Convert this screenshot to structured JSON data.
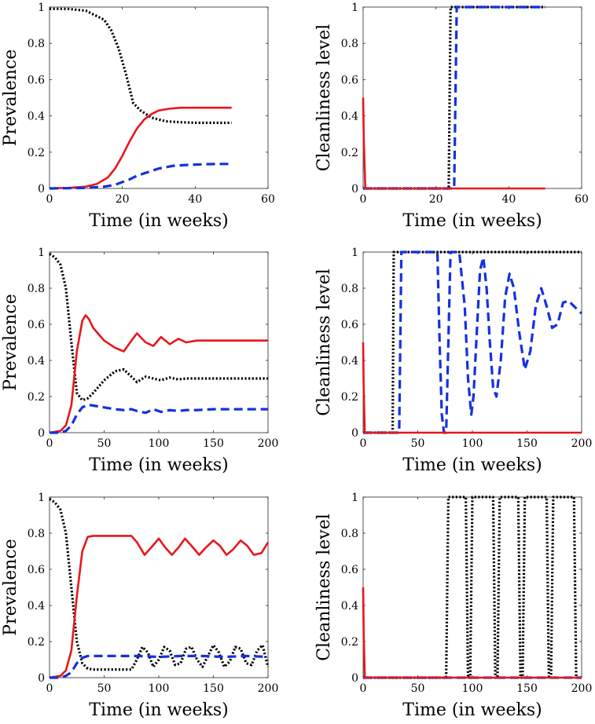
{
  "chart_data": [
    {
      "type": "line",
      "xlabel": "Time (in weeks)",
      "ylabel": "Prevalence",
      "xlim": [
        0,
        60
      ],
      "ylim": [
        0,
        1
      ],
      "xticks": [
        "0",
        "20",
        "40",
        "60"
      ],
      "yticks": [
        "0",
        "0.2",
        "0.4",
        "0.6",
        "0.8",
        "1"
      ],
      "series": [
        {
          "name": "black-dotted",
          "color": "#000000",
          "style": "dotted",
          "x": [
            0,
            5,
            10,
            15,
            17,
            19,
            21,
            23,
            25,
            28,
            32,
            36,
            40,
            45,
            50
          ],
          "y": [
            0.99,
            0.99,
            0.98,
            0.93,
            0.87,
            0.77,
            0.63,
            0.47,
            0.43,
            0.39,
            0.37,
            0.365,
            0.362,
            0.362,
            0.362
          ]
        },
        {
          "name": "red-solid",
          "color": "#e8161b",
          "style": "solid",
          "x": [
            0,
            5,
            10,
            13,
            16,
            18,
            20,
            22,
            24,
            26,
            28,
            30,
            33,
            36,
            40,
            45,
            50
          ],
          "y": [
            0.001,
            0.003,
            0.01,
            0.025,
            0.06,
            0.11,
            0.18,
            0.26,
            0.33,
            0.38,
            0.41,
            0.43,
            0.44,
            0.445,
            0.445,
            0.445,
            0.445
          ]
        },
        {
          "name": "blue-dashed",
          "color": "#1530e0",
          "style": "dashed",
          "x": [
            0,
            10,
            15,
            18,
            20,
            22,
            24,
            27,
            30,
            34,
            38,
            42,
            46,
            50
          ],
          "y": [
            0.0,
            0.003,
            0.01,
            0.02,
            0.035,
            0.05,
            0.07,
            0.09,
            0.11,
            0.125,
            0.13,
            0.133,
            0.135,
            0.135
          ]
        }
      ]
    },
    {
      "type": "line",
      "xlabel": "Time (in weeks)",
      "ylabel": "Cleanliness level",
      "xlim": [
        0,
        60
      ],
      "ylim": [
        0,
        1
      ],
      "xticks": [
        "0",
        "20",
        "40",
        "60"
      ],
      "yticks": [
        "0",
        "0.2",
        "0.4",
        "0.6",
        "0.8",
        "1"
      ],
      "series": [
        {
          "name": "black-dotted",
          "color": "#000000",
          "style": "dotted",
          "x": [
            0,
            23.5,
            24,
            50
          ],
          "y": [
            0,
            0,
            1,
            1
          ]
        },
        {
          "name": "blue-dashed",
          "color": "#1530e0",
          "style": "dashed",
          "x": [
            0,
            25,
            25.7,
            50
          ],
          "y": [
            0,
            0,
            1,
            1
          ]
        },
        {
          "name": "red-solid",
          "color": "#e8161b",
          "style": "solid",
          "x": [
            0,
            0.2,
            0.6,
            50
          ],
          "y": [
            0.5,
            0.25,
            0,
            0
          ]
        }
      ]
    },
    {
      "type": "line",
      "xlabel": "Time (in weeks)",
      "ylabel": "Prevalence",
      "xlim": [
        0,
        200
      ],
      "ylim": [
        0,
        1
      ],
      "xticks": [
        "0",
        "50",
        "100",
        "150",
        "200"
      ],
      "yticks": [
        "0",
        "0.2",
        "0.4",
        "0.6",
        "0.8",
        "1"
      ],
      "series": [
        {
          "name": "black-dotted",
          "color": "#000000",
          "style": "dotted",
          "x": [
            0,
            5,
            10,
            15,
            20,
            25,
            30,
            35,
            40,
            50,
            60,
            68,
            75,
            80,
            88,
            95,
            102,
            110,
            118,
            125,
            135,
            150,
            165,
            180,
            200
          ],
          "y": [
            0.99,
            0.97,
            0.93,
            0.8,
            0.5,
            0.22,
            0.18,
            0.19,
            0.22,
            0.29,
            0.34,
            0.35,
            0.31,
            0.28,
            0.31,
            0.3,
            0.29,
            0.305,
            0.295,
            0.3,
            0.3,
            0.3,
            0.3,
            0.3,
            0.3
          ]
        },
        {
          "name": "red-solid",
          "color": "#e8161b",
          "style": "solid",
          "x": [
            0,
            10,
            15,
            20,
            25,
            30,
            33,
            36,
            40,
            50,
            60,
            68,
            75,
            80,
            88,
            95,
            102,
            110,
            118,
            125,
            135,
            150,
            165,
            180,
            200
          ],
          "y": [
            0,
            0.01,
            0.04,
            0.15,
            0.45,
            0.62,
            0.65,
            0.63,
            0.58,
            0.51,
            0.47,
            0.45,
            0.51,
            0.55,
            0.5,
            0.48,
            0.53,
            0.49,
            0.52,
            0.5,
            0.51,
            0.51,
            0.51,
            0.51,
            0.51
          ]
        },
        {
          "name": "blue-dashed",
          "color": "#1530e0",
          "style": "dashed",
          "x": [
            0,
            10,
            15,
            20,
            25,
            30,
            35,
            40,
            50,
            60,
            68,
            75,
            80,
            88,
            95,
            102,
            110,
            118,
            125,
            135,
            150,
            165,
            180,
            200
          ],
          "y": [
            0,
            0.0,
            0.01,
            0.04,
            0.1,
            0.14,
            0.155,
            0.15,
            0.14,
            0.13,
            0.125,
            0.13,
            0.12,
            0.11,
            0.13,
            0.115,
            0.125,
            0.12,
            0.125,
            0.125,
            0.13,
            0.13,
            0.13,
            0.13
          ]
        }
      ]
    },
    {
      "type": "line",
      "xlabel": "Time (in weeks)",
      "ylabel": "Cleanliness level",
      "xlim": [
        0,
        200
      ],
      "ylim": [
        0,
        1
      ],
      "xticks": [
        "0",
        "50",
        "100",
        "150",
        "200"
      ],
      "yticks": [
        "0",
        "0.2",
        "0.4",
        "0.6",
        "0.8",
        "1"
      ],
      "series": [
        {
          "name": "black-dotted",
          "color": "#000000",
          "style": "dotted",
          "x": [
            0,
            27,
            28,
            200
          ],
          "y": [
            0,
            0,
            1,
            1
          ]
        },
        {
          "name": "blue-dashed",
          "color": "#1530e0",
          "style": "dashed",
          "x": [
            0,
            33,
            35,
            68,
            70,
            72,
            74,
            76,
            78,
            80,
            84,
            88,
            93,
            96,
            99,
            101,
            104,
            107,
            110,
            113,
            116,
            119,
            122,
            126,
            130,
            134,
            138,
            143,
            148,
            153,
            158,
            163,
            168,
            173,
            178,
            183,
            188,
            193,
            200
          ],
          "y": [
            0,
            0,
            1,
            1,
            0.5,
            0.1,
            0,
            0,
            0.5,
            1,
            1,
            1,
            0.7,
            0.3,
            0.1,
            0.2,
            0.55,
            0.9,
            0.97,
            0.8,
            0.5,
            0.25,
            0.2,
            0.4,
            0.75,
            0.88,
            0.8,
            0.55,
            0.35,
            0.45,
            0.7,
            0.8,
            0.7,
            0.58,
            0.6,
            0.72,
            0.73,
            0.7,
            0.66
          ]
        },
        {
          "name": "red-solid",
          "color": "#e8161b",
          "style": "solid",
          "x": [
            0,
            0.5,
            1.5,
            200
          ],
          "y": [
            0.5,
            0.25,
            0,
            0
          ]
        }
      ]
    },
    {
      "type": "line",
      "xlabel": "Time (in weeks)",
      "ylabel": "Prevalence",
      "xlim": [
        0,
        200
      ],
      "ylim": [
        0,
        1
      ],
      "xticks": [
        "0",
        "50",
        "100",
        "150",
        "200"
      ],
      "yticks": [
        "0",
        "0.2",
        "0.4",
        "0.6",
        "0.8",
        "1"
      ],
      "series": [
        {
          "name": "black-dotted",
          "color": "#000000",
          "style": "dotted",
          "x": [
            0,
            5,
            10,
            15,
            20,
            25,
            30,
            35,
            40,
            50,
            60,
            75,
            80,
            85,
            90,
            95,
            100,
            105,
            110,
            115,
            120,
            125,
            130,
            135,
            140,
            145,
            150,
            155,
            160,
            165,
            170,
            175,
            180,
            185,
            190,
            195,
            200
          ],
          "y": [
            0.99,
            0.97,
            0.93,
            0.8,
            0.5,
            0.2,
            0.08,
            0.05,
            0.045,
            0.045,
            0.045,
            0.045,
            0.1,
            0.17,
            0.14,
            0.06,
            0.1,
            0.17,
            0.15,
            0.07,
            0.08,
            0.16,
            0.17,
            0.1,
            0.06,
            0.12,
            0.18,
            0.14,
            0.06,
            0.09,
            0.17,
            0.16,
            0.08,
            0.07,
            0.15,
            0.18,
            0.06
          ]
        },
        {
          "name": "red-solid",
          "color": "#e8161b",
          "style": "solid",
          "x": [
            0,
            10,
            15,
            20,
            25,
            30,
            35,
            40,
            50,
            60,
            75,
            80,
            87,
            93,
            100,
            106,
            112,
            118,
            124,
            130,
            137,
            143,
            150,
            156,
            162,
            168,
            175,
            181,
            187,
            194,
            200
          ],
          "y": [
            0,
            0.01,
            0.04,
            0.15,
            0.45,
            0.7,
            0.78,
            0.785,
            0.785,
            0.785,
            0.785,
            0.75,
            0.68,
            0.72,
            0.77,
            0.72,
            0.68,
            0.72,
            0.77,
            0.73,
            0.68,
            0.72,
            0.76,
            0.73,
            0.68,
            0.71,
            0.76,
            0.73,
            0.68,
            0.69,
            0.75
          ]
        },
        {
          "name": "blue-dashed",
          "color": "#1530e0",
          "style": "dashed",
          "x": [
            0,
            10,
            15,
            20,
            25,
            30,
            35,
            40,
            60,
            80,
            100,
            120,
            140,
            160,
            180,
            200
          ],
          "y": [
            0,
            0.0,
            0.01,
            0.03,
            0.08,
            0.11,
            0.12,
            0.12,
            0.12,
            0.12,
            0.115,
            0.12,
            0.12,
            0.115,
            0.12,
            0.115
          ]
        }
      ]
    },
    {
      "type": "line",
      "xlabel": "Time (in weeks)",
      "ylabel": "Cleanliness level",
      "xlim": [
        0,
        200
      ],
      "ylim": [
        0,
        1
      ],
      "xticks": [
        "0",
        "50",
        "100",
        "150",
        "200"
      ],
      "yticks": [
        "0",
        "0.2",
        "0.4",
        "0.6",
        "0.8",
        "1"
      ],
      "series": [
        {
          "name": "black-dotted",
          "color": "#000000",
          "style": "dotted",
          "x": [
            0,
            76,
            78,
            94,
            96,
            98,
            100,
            119,
            121,
            123,
            125,
            142,
            144,
            146,
            148,
            168,
            170,
            172,
            174,
            193,
            195,
            197,
            200
          ],
          "y": [
            0,
            0,
            1,
            1,
            0,
            0,
            1,
            1,
            0,
            0,
            1,
            1,
            0,
            0,
            1,
            1,
            0,
            0,
            1,
            1,
            0,
            0,
            0
          ]
        },
        {
          "name": "blue-dashed",
          "color": "#1530e0",
          "style": "dashed",
          "x": [
            0,
            200
          ],
          "y": [
            0,
            0
          ]
        },
        {
          "name": "red-solid",
          "color": "#e8161b",
          "style": "solid",
          "x": [
            0,
            0.5,
            1.5,
            200
          ],
          "y": [
            0.5,
            0.25,
            0,
            0
          ]
        }
      ]
    }
  ]
}
